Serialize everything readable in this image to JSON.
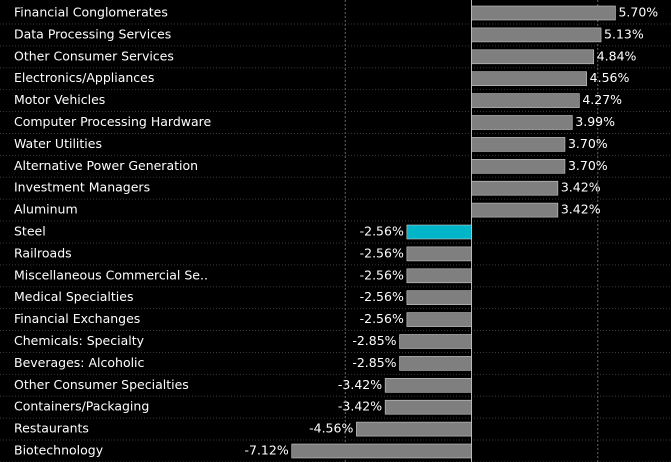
{
  "chart_data": {
    "type": "barh",
    "categories": [
      "Financial Conglomerates",
      "Data Processing Services",
      "Other Consumer Services",
      "Electronics/Appliances",
      "Motor Vehicles",
      "Computer Processing Hardware",
      "Water Utilities",
      "Alternative Power Generation",
      "Investment Managers",
      "Aluminum",
      "Steel",
      "Railroads",
      "Miscellaneous Commercial Se..",
      "Medical Specialties",
      "Financial Exchanges",
      "Chemicals: Specialty",
      "Beverages: Alcoholic",
      "Other Consumer Specialties",
      "Containers/Packaging",
      "Restaurants",
      "Biotechnology"
    ],
    "values": [
      5.7,
      5.13,
      4.84,
      4.56,
      4.27,
      3.99,
      3.7,
      3.7,
      3.42,
      3.42,
      -2.56,
      -2.56,
      -2.56,
      -2.56,
      -2.56,
      -2.85,
      -2.85,
      -3.42,
      -3.42,
      -4.56,
      -7.12
    ],
    "value_labels": [
      "5.70%",
      "5.13%",
      "4.84%",
      "4.56%",
      "4.27%",
      "3.99%",
      "3.70%",
      "3.70%",
      "3.42%",
      "3.42%",
      "-2.56%",
      "-2.56%",
      "-2.56%",
      "-2.56%",
      "-2.56%",
      "-2.85%",
      "-2.85%",
      "-3.42%",
      "-3.42%",
      "-4.56%",
      "-7.12%"
    ],
    "colors": [
      "#7f7f7f",
      "#7f7f7f",
      "#7f7f7f",
      "#7f7f7f",
      "#7f7f7f",
      "#7f7f7f",
      "#7f7f7f",
      "#7f7f7f",
      "#7f7f7f",
      "#7f7f7f",
      "#00b5c8",
      "#7f7f7f",
      "#7f7f7f",
      "#7f7f7f",
      "#7f7f7f",
      "#7f7f7f",
      "#7f7f7f",
      "#7f7f7f",
      "#7f7f7f",
      "#7f7f7f",
      "#7f7f7f"
    ],
    "xlim": [
      -10,
      7.9
    ],
    "xticks": [
      -5,
      0,
      5
    ],
    "grid": true
  }
}
